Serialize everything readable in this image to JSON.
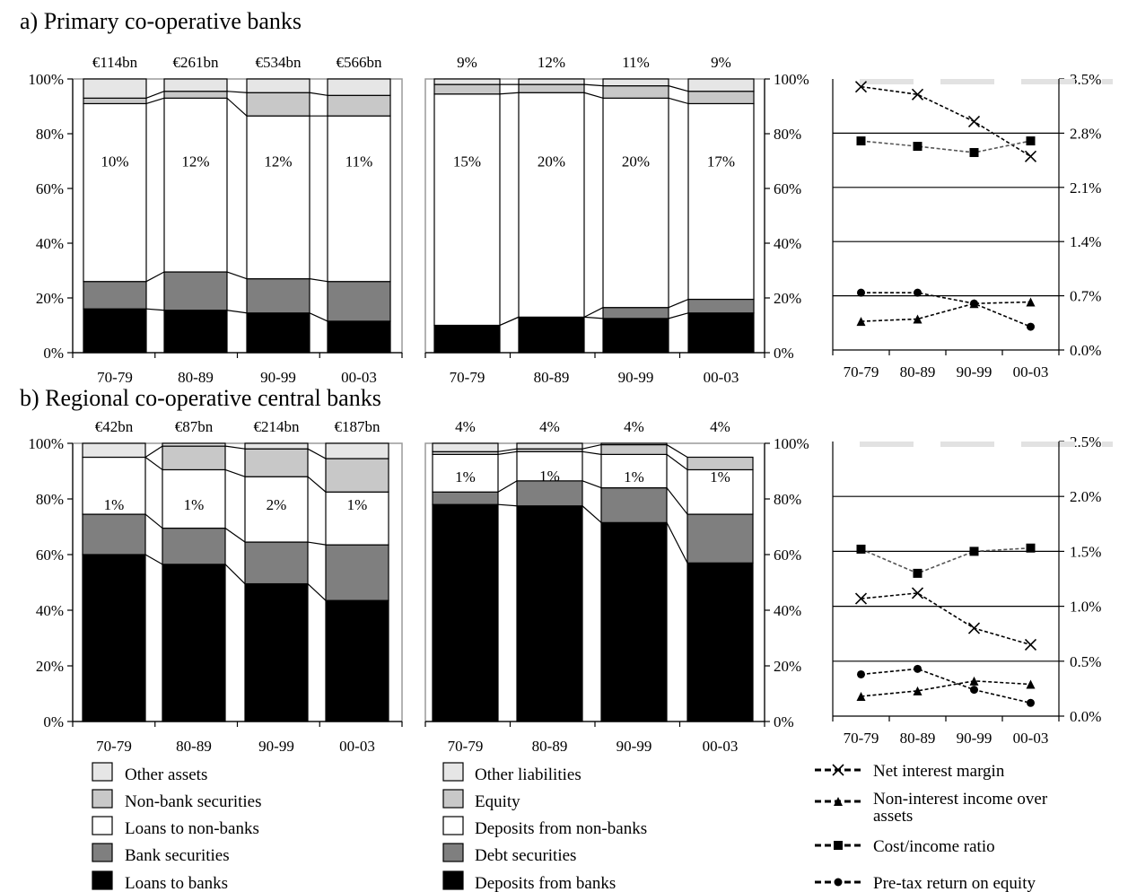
{
  "colors": {
    "other": "#e6e6e6",
    "securities": "#c8c8c8",
    "white": "#ffffff",
    "grey": "#7f7f7f",
    "black": "#000000"
  },
  "panels": {
    "a": {
      "title": "a) Primary co-operative banks"
    },
    "b": {
      "title": "b) Regional co-operative central banks"
    }
  },
  "chart_data": [
    {
      "id": "a-assets",
      "type": "bar",
      "stacked": true,
      "categories": [
        "70-79",
        "80-89",
        "90-99",
        "00-03"
      ],
      "top_labels": [
        "€114bn",
        "€261bn",
        "€534bn",
        "€566bn"
      ],
      "inner_labels": [
        "10%",
        "12%",
        "12%",
        "11%"
      ],
      "ylim": [
        0,
        100
      ],
      "yticks": [
        "0%",
        "20%",
        "40%",
        "60%",
        "80%",
        "100%"
      ],
      "series": [
        {
          "name": "Loans to banks",
          "values": [
            16,
            15.5,
            14.5,
            11.5
          ]
        },
        {
          "name": "Bank securities",
          "values": [
            10,
            14,
            12.5,
            14.5
          ]
        },
        {
          "name": "Loans to non-banks",
          "values": [
            65,
            63.5,
            59.5,
            60.5
          ]
        },
        {
          "name": "Non-bank securities",
          "values": [
            2,
            2.5,
            8.5,
            7.5
          ]
        },
        {
          "name": "Other assets",
          "values": [
            7,
            4.5,
            5,
            6
          ]
        }
      ]
    },
    {
      "id": "a-liabilities",
      "type": "bar",
      "stacked": true,
      "categories": [
        "70-79",
        "80-89",
        "90-99",
        "00-03"
      ],
      "top_labels": [
        "9%",
        "12%",
        "11%",
        "9%"
      ],
      "inner_labels": [
        "15%",
        "20%",
        "20%",
        "17%"
      ],
      "ylim": [
        0,
        100
      ],
      "yticks": [
        "0%",
        "20%",
        "40%",
        "60%",
        "80%",
        "100%"
      ],
      "series": [
        {
          "name": "Deposits from banks",
          "values": [
            10,
            13,
            12.5,
            14.5
          ]
        },
        {
          "name": "Debt securities",
          "values": [
            0,
            0,
            4,
            5
          ]
        },
        {
          "name": "Deposits from non-banks",
          "values": [
            84.5,
            82,
            76.5,
            71.5
          ]
        },
        {
          "name": "Equity",
          "values": [
            3.5,
            3,
            4.5,
            4.5
          ]
        },
        {
          "name": "Other liabilities",
          "values": [
            2,
            2,
            2.5,
            4.5
          ]
        }
      ]
    },
    {
      "id": "a-ratios",
      "type": "line",
      "categories": [
        "70-79",
        "80-89",
        "90-99",
        "00-03"
      ],
      "ylim": [
        0,
        3.5
      ],
      "yticks": [
        "0.0%",
        "0.7%",
        "1.4%",
        "2.1%",
        "2.8%",
        "3.5%"
      ],
      "series": [
        {
          "name": "Net interest margin",
          "values": [
            3.4,
            3.3,
            2.95,
            2.5
          ]
        },
        {
          "name": "Non-interest income over assets",
          "values": [
            0.37,
            0.4,
            0.6,
            0.62
          ]
        },
        {
          "name": "Cost/income ratio",
          "values": [
            2.7,
            2.63,
            2.55,
            2.7
          ]
        },
        {
          "name": "Pre-tax return on equity",
          "values": [
            0.74,
            0.74,
            0.6,
            0.3
          ]
        }
      ]
    },
    {
      "id": "b-assets",
      "type": "bar",
      "stacked": true,
      "categories": [
        "70-79",
        "80-89",
        "90-99",
        "00-03"
      ],
      "top_labels": [
        "€42bn",
        "€87bn",
        "€214bn",
        "€187bn"
      ],
      "inner_labels": [
        "1%",
        "1%",
        "2%",
        "1%"
      ],
      "ylim": [
        0,
        100
      ],
      "yticks": [
        "0%",
        "20%",
        "40%",
        "60%",
        "80%",
        "100%"
      ],
      "series": [
        {
          "name": "Loans to banks",
          "values": [
            60,
            56.5,
            49.5,
            43.5
          ]
        },
        {
          "name": "Bank securities",
          "values": [
            14.5,
            13,
            15,
            20
          ]
        },
        {
          "name": "Loans to non-banks",
          "values": [
            20.5,
            21,
            23.5,
            19
          ]
        },
        {
          "name": "Non-bank securities",
          "values": [
            0,
            8.5,
            10,
            12
          ]
        },
        {
          "name": "Other assets",
          "values": [
            5,
            1,
            2,
            5.5
          ]
        }
      ]
    },
    {
      "id": "b-liabilities",
      "type": "bar",
      "stacked": true,
      "categories": [
        "70-79",
        "80-89",
        "90-99",
        "00-03"
      ],
      "top_labels": [
        "4%",
        "4%",
        "4%",
        "4%"
      ],
      "inner_labels": [
        "1%",
        "1%",
        "1%",
        "1%"
      ],
      "ylim": [
        0,
        100
      ],
      "yticks": [
        "0%",
        "20%",
        "40%",
        "60%",
        "80%",
        "100%"
      ],
      "series": [
        {
          "name": "Deposits from banks",
          "values": [
            78,
            77.5,
            71.5,
            57
          ]
        },
        {
          "name": "Debt securities",
          "values": [
            4.5,
            9,
            12.5,
            17.5
          ]
        },
        {
          "name": "Deposits from non-banks",
          "values": [
            13.5,
            10.5,
            12,
            16
          ]
        },
        {
          "name": "Equity",
          "values": [
            1,
            1,
            3.5,
            4.5
          ]
        },
        {
          "name": "Other liabilities",
          "values": [
            3,
            2,
            0.5,
            0
          ]
        }
      ]
    },
    {
      "id": "b-ratios",
      "type": "line",
      "categories": [
        "70-79",
        "80-89",
        "90-99",
        "00-03"
      ],
      "ylim": [
        0,
        2.5
      ],
      "yticks": [
        "0.0%",
        "0.5%",
        "1.0%",
        "1.5%",
        "2.0%",
        "2.5%"
      ],
      "series": [
        {
          "name": "Net interest margin",
          "values": [
            1.07,
            1.12,
            0.8,
            0.65
          ]
        },
        {
          "name": "Non-interest income over assets",
          "values": [
            0.18,
            0.23,
            0.32,
            0.29
          ]
        },
        {
          "name": "Cost/income ratio",
          "values": [
            1.52,
            1.3,
            1.5,
            1.53
          ]
        },
        {
          "name": "Pre-tax return on equity",
          "values": [
            0.38,
            0.43,
            0.24,
            0.12
          ]
        }
      ]
    }
  ],
  "legends": {
    "assets": [
      "Other assets",
      "Non-bank securities",
      "Loans to non-banks",
      "Bank securities",
      "Loans to banks"
    ],
    "liabilities": [
      "Other liabilities",
      "Equity",
      "Deposits from non-banks",
      "Debt securities",
      "Deposits from banks"
    ],
    "ratios": [
      "Net interest margin",
      "Non-interest income over assets",
      "Cost/income ratio",
      "Pre-tax return on equity"
    ]
  }
}
